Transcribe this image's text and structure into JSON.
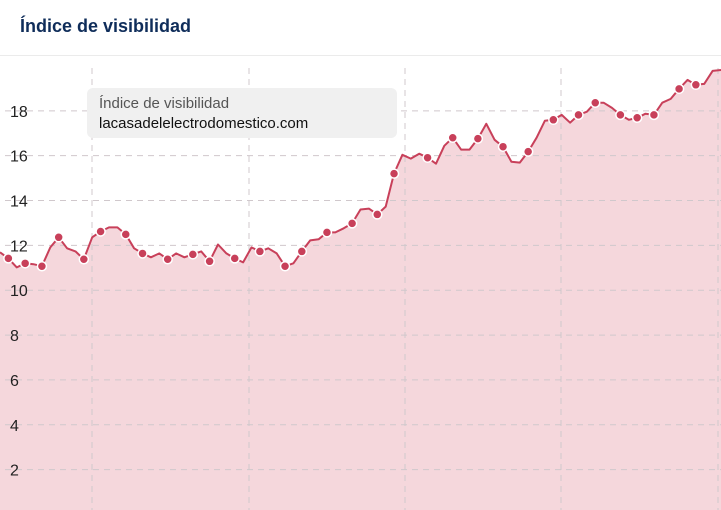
{
  "header": {
    "title": "Índice de visibilidad"
  },
  "legend": {
    "metric": "Índice de visibilidad",
    "domain": "lacasadelelectrodomestico.com"
  },
  "colors": {
    "line": "#c8405a",
    "fill": "#f5d7dc",
    "title": "#0f2d5a",
    "grid": "#d0c8cc"
  },
  "chart_data": {
    "type": "area",
    "title": "Índice de visibilidad",
    "series": [
      {
        "name": "lacasadelelectrodomestico.com",
        "values": [
          11.69,
          11.42,
          11.02,
          11.2,
          11.16,
          11.07,
          11.91,
          12.36,
          11.87,
          11.73,
          11.38,
          12.36,
          12.62,
          12.8,
          12.8,
          12.49,
          11.87,
          11.64,
          11.47,
          11.64,
          11.38,
          11.64,
          11.47,
          11.6,
          11.73,
          11.29,
          12.04,
          11.64,
          11.42,
          11.24,
          11.91,
          11.73,
          11.87,
          11.64,
          11.07,
          11.2,
          11.73,
          12.22,
          12.27,
          12.58,
          12.58,
          12.76,
          12.98,
          13.6,
          13.64,
          13.38,
          13.73,
          15.2,
          16.04,
          15.87,
          16.09,
          15.91,
          15.64,
          16.44,
          16.8,
          16.27,
          16.27,
          16.76,
          17.42,
          16.71,
          16.4,
          15.73,
          15.69,
          16.18,
          16.8,
          17.56,
          17.6,
          17.82,
          17.47,
          17.82,
          17.96,
          18.36,
          18.36,
          18.13,
          17.82,
          17.6,
          17.69,
          17.87,
          17.82,
          18.36,
          18.53,
          18.98,
          19.38,
          19.16,
          19.2,
          19.78,
          19.82
        ],
        "marker_indices": [
          1,
          3,
          5,
          7,
          10,
          12,
          15,
          17,
          20,
          23,
          25,
          28,
          31,
          34,
          36,
          39,
          42,
          45,
          47,
          51,
          54,
          57,
          60,
          63,
          66,
          69,
          71,
          74,
          76,
          78,
          81,
          83
        ]
      }
    ],
    "yticks": [
      2,
      4,
      6,
      8,
      10,
      12,
      14,
      16,
      18
    ],
    "ylim": [
      0.2,
      20.4
    ],
    "grid": true,
    "legend_placement": "top-left"
  }
}
